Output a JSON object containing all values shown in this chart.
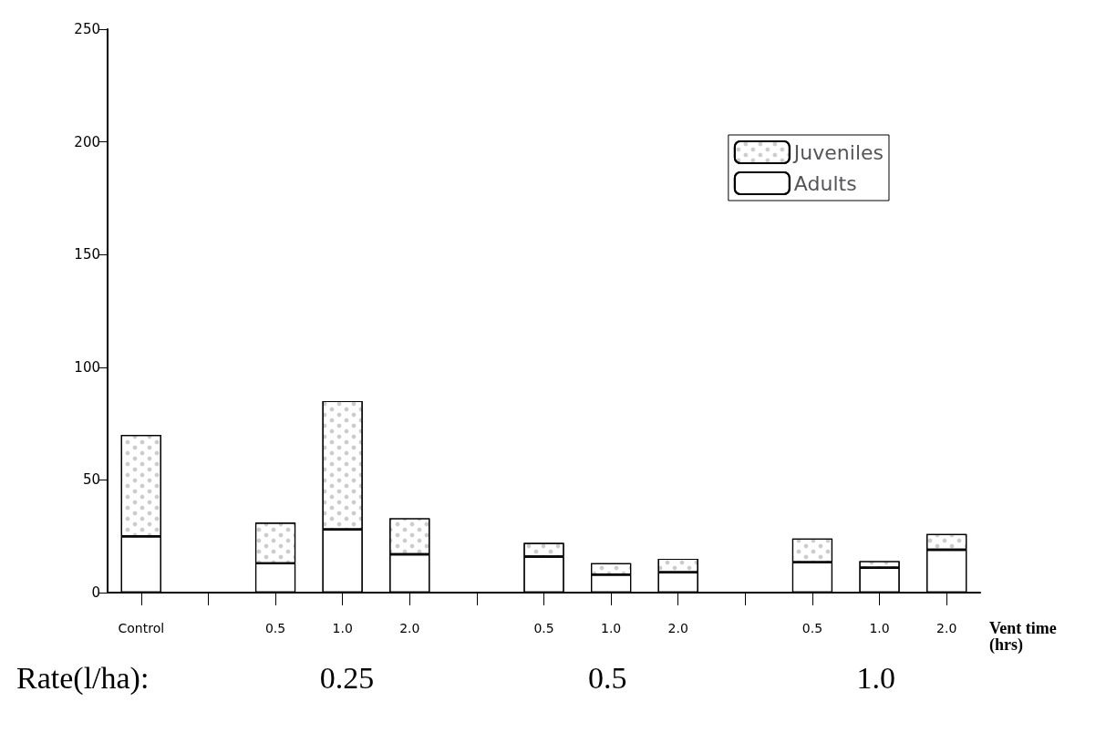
{
  "chart_data": {
    "type": "bar",
    "stacked": true,
    "xlabel": "Vent time\n(hrs)",
    "categories": [
      "Control",
      null,
      "0.5",
      "1.0",
      "2.0",
      null,
      "0.5",
      "1.0",
      "2.0",
      null,
      "0.5",
      "1.0",
      "2.0"
    ],
    "series": [
      {
        "name": "Adults",
        "color": "#ffffff",
        "values": [
          25,
          null,
          13,
          28,
          17,
          null,
          16,
          8,
          9,
          null,
          13.5,
          11,
          19
        ]
      },
      {
        "name": "Juveniles",
        "color": "#ffffff",
        "values": [
          45,
          null,
          18,
          57,
          16,
          null,
          6,
          5,
          6,
          null,
          10.5,
          3,
          7
        ]
      }
    ],
    "ylim": [
      0,
      250
    ],
    "yticks": [
      0,
      50,
      100,
      150,
      200,
      250
    ],
    "grid": false,
    "legend": "top right",
    "annotations": [
      "Rate(l/ha):",
      "0.25",
      "0.5",
      "1.0"
    ]
  }
}
